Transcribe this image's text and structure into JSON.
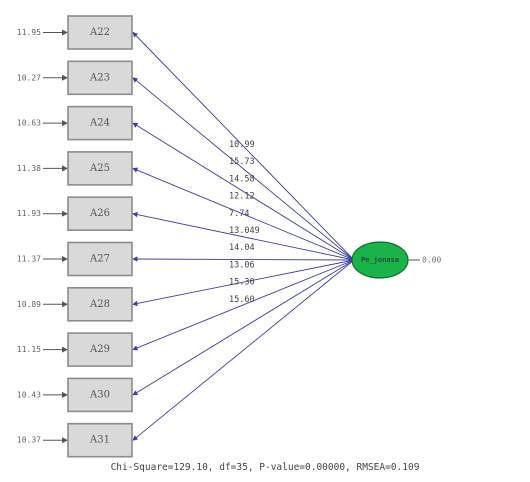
{
  "diagram": {
    "latent": {
      "label": "Pe_jonasa",
      "variance": "0.00"
    },
    "indicators": [
      {
        "name": "A22",
        "error": "11.95",
        "t": "10.99"
      },
      {
        "name": "A23",
        "error": "10.27",
        "t": "15.73"
      },
      {
        "name": "A24",
        "error": "10.63",
        "t": "14.58"
      },
      {
        "name": "A25",
        "error": "11.38",
        "t": "12.12"
      },
      {
        "name": "A26",
        "error": "11.93",
        "t": "7.74"
      },
      {
        "name": "A27",
        "error": "11.37",
        "t": "13.049"
      },
      {
        "name": "A28",
        "error": "10.89",
        "t": "14.04"
      },
      {
        "name": "A29",
        "error": "11.15",
        "t": "13.06"
      },
      {
        "name": "A30",
        "error": "10.43",
        "t": "15.30"
      },
      {
        "name": "A31",
        "error": "10.37",
        "t": "15.60"
      }
    ],
    "colors": {
      "path": "#3d3da8",
      "latent_fill": "#19b34a",
      "box_fill": "#d9d9d9"
    }
  },
  "fit_statistics": "Chi-Square=129.10, df=35, P-value=0.00000, RMSEA=0.109"
}
